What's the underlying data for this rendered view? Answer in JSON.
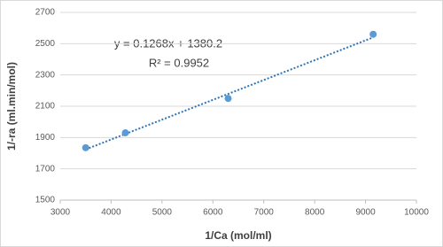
{
  "chart_data": {
    "type": "scatter",
    "x_label": "1/Ca (mol/ml)",
    "y_label": "1/-ra (ml.min/mol)",
    "annotations": [
      "y = 0.1268x + 1380.2",
      "R² = 0.9952"
    ],
    "x": [
      3500,
      4280,
      6300,
      9150
    ],
    "values": [
      1835,
      1930,
      2150,
      2560
    ],
    "color": "#5b9bd5",
    "trendline": {
      "x": [
        3500,
        9150
      ],
      "values": [
        1824,
        2540
      ],
      "color": "#2e75b6",
      "style": "dotted"
    },
    "xlim": [
      3000,
      10000
    ],
    "xticks": [
      3000,
      4000,
      5000,
      6000,
      7000,
      8000,
      9000,
      10000
    ],
    "ylim": [
      1500,
      2700
    ],
    "yticks": [
      1500,
      1700,
      1900,
      2100,
      2300,
      2500,
      2700
    ],
    "grid": true
  }
}
